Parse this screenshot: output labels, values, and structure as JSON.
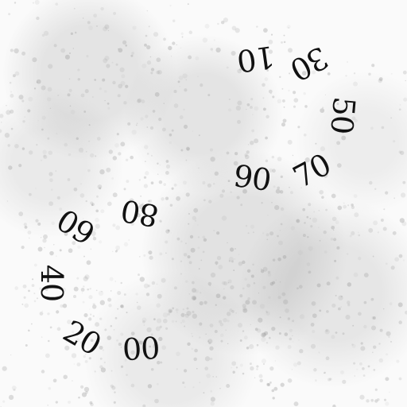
{
  "captcha": {
    "text_color": "#111111",
    "background_color": "#fafafa",
    "speckle_color": "#9a9a9a",
    "numbers": [
      "10",
      "30",
      "50",
      "70",
      "90",
      "80",
      "60",
      "40",
      "20",
      "00"
    ]
  }
}
